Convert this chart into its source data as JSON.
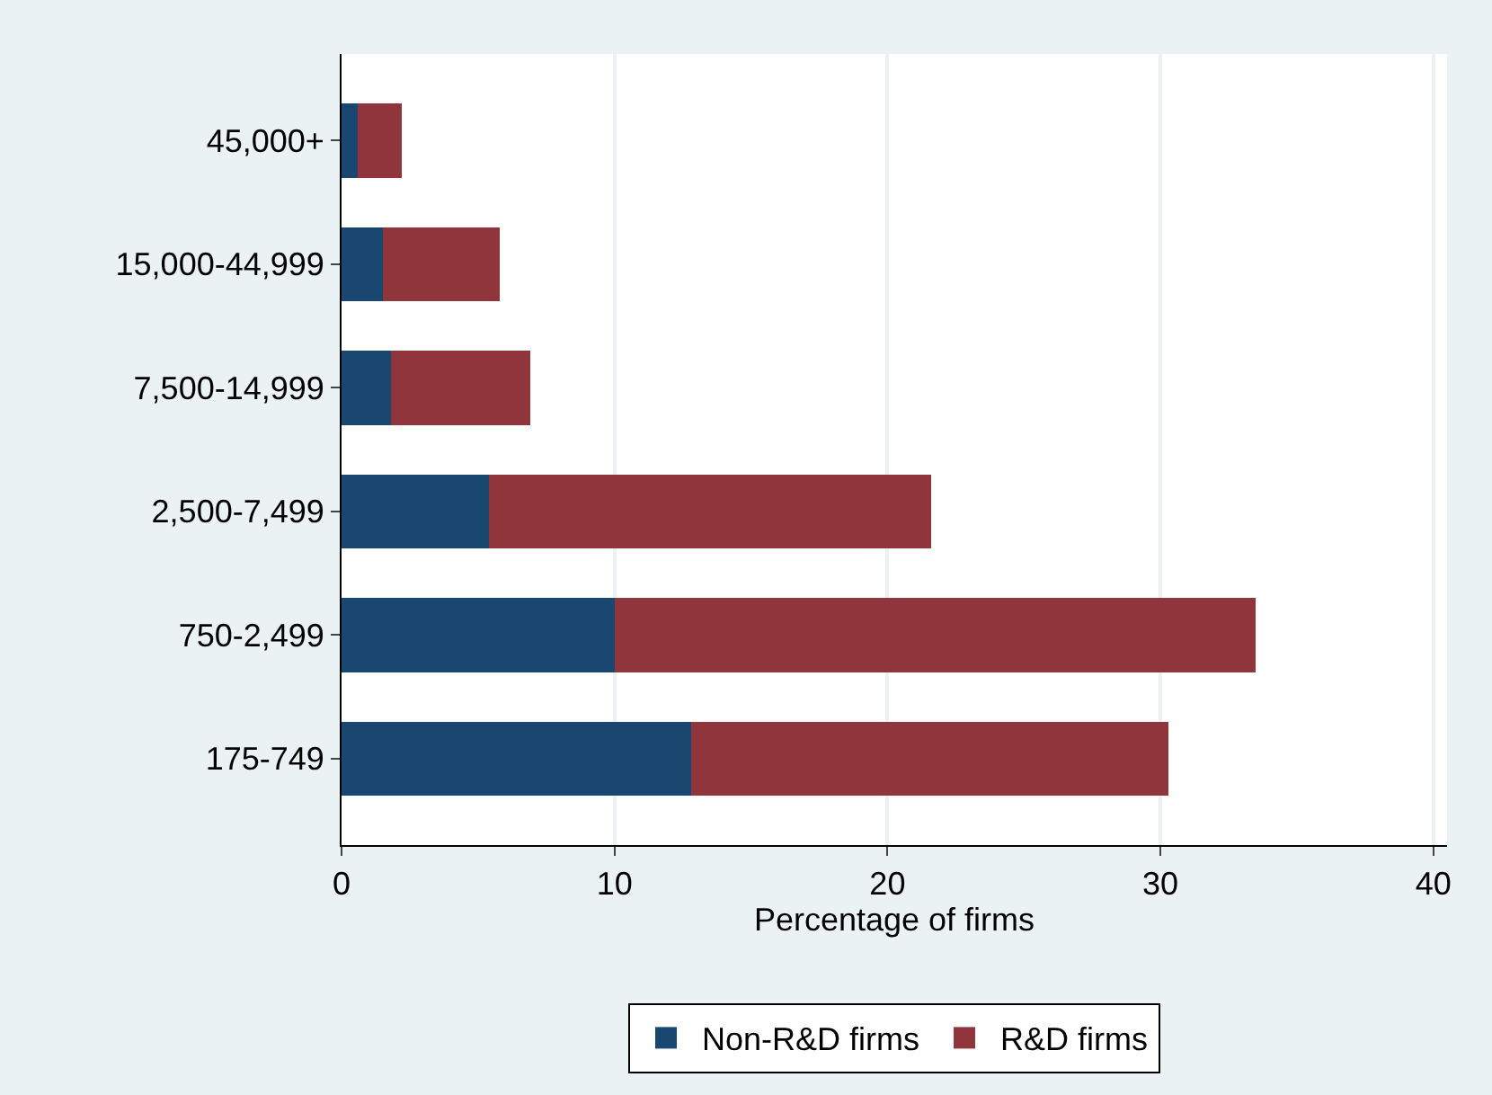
{
  "chart_data": {
    "type": "bar",
    "orientation": "horizontal",
    "stacked": true,
    "xlabel": "Percentage of firms",
    "categories": [
      "45,000+",
      "15,000-44,999",
      "7,500-14,999",
      "2,500-7,499",
      "750-2,499",
      "175-749"
    ],
    "series": [
      {
        "name": "Non-R&D firms",
        "color": "#1a476f",
        "values": [
          0.6,
          1.5,
          1.8,
          5.4,
          10.0,
          12.8
        ]
      },
      {
        "name": "R&D firms",
        "color": "#90353b",
        "values": [
          1.6,
          4.3,
          5.1,
          16.2,
          23.5,
          17.5
        ]
      }
    ],
    "xlim": [
      0,
      40.5
    ],
    "xticks": [
      0,
      10,
      20,
      30,
      40
    ],
    "grid": "x",
    "legend": "bottom"
  }
}
